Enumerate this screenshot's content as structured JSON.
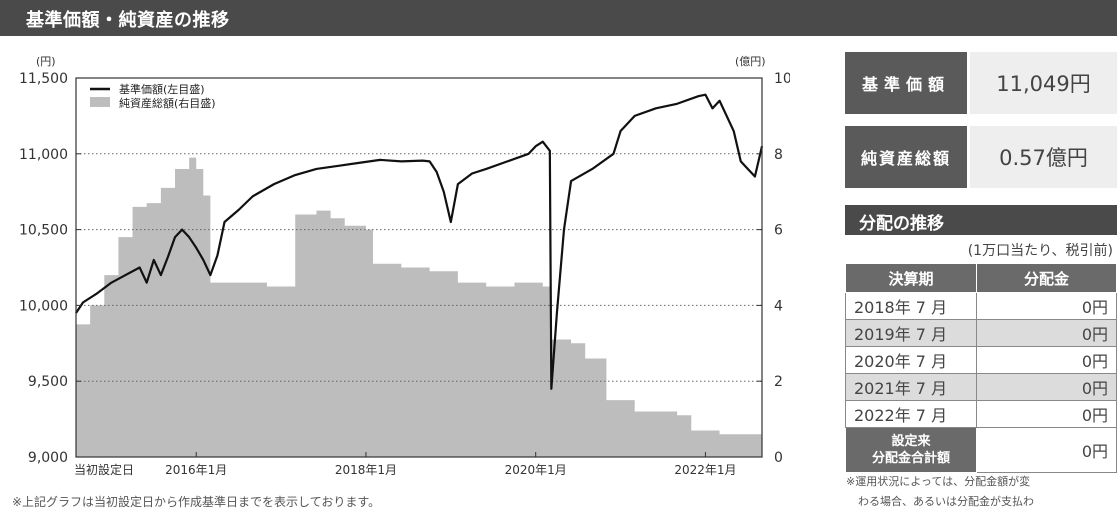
{
  "header": {
    "title": "基準価額・純資産の推移"
  },
  "chart_data": {
    "type": "line+area",
    "left_axis": {
      "unit": "(円)",
      "ticks": [
        "9,000",
        "9,500",
        "10,000",
        "10,500",
        "11,000",
        "11,500"
      ],
      "ylim": [
        9000,
        11500
      ]
    },
    "right_axis": {
      "unit": "(億円)",
      "ticks": [
        "0",
        "2",
        "4",
        "6",
        "8",
        "10"
      ],
      "ylim": [
        0,
        10
      ]
    },
    "x_ticks": [
      "当初設定日",
      "2016年1月",
      "2018年1月",
      "2020年1月",
      "2022年1月"
    ],
    "x_tick_dates": [
      "2014-08",
      "2016-01",
      "2018-01",
      "2020-01",
      "2022-01"
    ],
    "x_range": [
      "2014-08",
      "2022-09"
    ],
    "grid": true,
    "legend_position": "top-left",
    "series": [
      {
        "name": "基準価額(左目盛)",
        "kind": "line",
        "axis": "left",
        "color": "#111111",
        "points": [
          [
            "2014-08",
            9950
          ],
          [
            "2014-09",
            10020
          ],
          [
            "2014-11",
            10080
          ],
          [
            "2015-01",
            10150
          ],
          [
            "2015-03",
            10200
          ],
          [
            "2015-05",
            10250
          ],
          [
            "2015-06",
            10150
          ],
          [
            "2015-07",
            10300
          ],
          [
            "2015-08",
            10200
          ],
          [
            "2015-09",
            10320
          ],
          [
            "2015-10",
            10450
          ],
          [
            "2015-11",
            10500
          ],
          [
            "2015-12",
            10450
          ],
          [
            "2016-01",
            10380
          ],
          [
            "2016-02",
            10300
          ],
          [
            "2016-03",
            10200
          ],
          [
            "2016-04",
            10330
          ],
          [
            "2016-05",
            10550
          ],
          [
            "2016-07",
            10630
          ],
          [
            "2016-09",
            10720
          ],
          [
            "2016-12",
            10800
          ],
          [
            "2017-03",
            10860
          ],
          [
            "2017-06",
            10900
          ],
          [
            "2017-09",
            10920
          ],
          [
            "2017-12",
            10940
          ],
          [
            "2018-03",
            10960
          ],
          [
            "2018-06",
            10950
          ],
          [
            "2018-09",
            10955
          ],
          [
            "2018-10",
            10950
          ],
          [
            "2018-11",
            10880
          ],
          [
            "2018-12",
            10750
          ],
          [
            "2019-01",
            10550
          ],
          [
            "2019-02",
            10800
          ],
          [
            "2019-04",
            10870
          ],
          [
            "2019-06",
            10900
          ],
          [
            "2019-09",
            10950
          ],
          [
            "2019-12",
            11000
          ],
          [
            "2020-01",
            11050
          ],
          [
            "2020-02",
            11080
          ],
          [
            "2020-03",
            11020
          ],
          [
            "2020-03",
            9450
          ],
          [
            "2020-04",
            9950
          ],
          [
            "2020-05",
            10500
          ],
          [
            "2020-06",
            10820
          ],
          [
            "2020-09",
            10900
          ],
          [
            "2020-12",
            11000
          ],
          [
            "2021-01",
            11150
          ],
          [
            "2021-03",
            11250
          ],
          [
            "2021-06",
            11300
          ],
          [
            "2021-09",
            11330
          ],
          [
            "2021-12",
            11380
          ],
          [
            "2022-01",
            11390
          ],
          [
            "2022-02",
            11300
          ],
          [
            "2022-03",
            11350
          ],
          [
            "2022-05",
            11150
          ],
          [
            "2022-06",
            10950
          ],
          [
            "2022-07",
            10900
          ],
          [
            "2022-08",
            10850
          ],
          [
            "2022-09",
            11050
          ]
        ]
      },
      {
        "name": "純資産総額(右目盛)",
        "kind": "area",
        "axis": "right",
        "color": "#bdbdbd",
        "points": [
          [
            "2014-08",
            3.5
          ],
          [
            "2014-10",
            4.0
          ],
          [
            "2014-12",
            4.8
          ],
          [
            "2015-02",
            5.8
          ],
          [
            "2015-04",
            6.6
          ],
          [
            "2015-06",
            6.7
          ],
          [
            "2015-08",
            7.1
          ],
          [
            "2015-10",
            7.6
          ],
          [
            "2015-12",
            7.9
          ],
          [
            "2016-01",
            7.6
          ],
          [
            "2016-02",
            6.9
          ],
          [
            "2016-03",
            4.6
          ],
          [
            "2016-06",
            4.6
          ],
          [
            "2016-09",
            4.6
          ],
          [
            "2016-11",
            4.5
          ],
          [
            "2017-01",
            4.5
          ],
          [
            "2017-03",
            6.4
          ],
          [
            "2017-06",
            6.5
          ],
          [
            "2017-08",
            6.3
          ],
          [
            "2017-10",
            6.1
          ],
          [
            "2018-01",
            6.0
          ],
          [
            "2018-02",
            5.1
          ],
          [
            "2018-06",
            5.0
          ],
          [
            "2018-10",
            4.9
          ],
          [
            "2019-02",
            4.6
          ],
          [
            "2019-06",
            4.5
          ],
          [
            "2019-10",
            4.6
          ],
          [
            "2020-01",
            4.6
          ],
          [
            "2020-02",
            4.5
          ],
          [
            "2020-03",
            3.1
          ],
          [
            "2020-06",
            3.0
          ],
          [
            "2020-08",
            2.6
          ],
          [
            "2020-11",
            1.5
          ],
          [
            "2021-03",
            1.2
          ],
          [
            "2021-06",
            1.2
          ],
          [
            "2021-09",
            1.1
          ],
          [
            "2021-11",
            0.7
          ],
          [
            "2022-03",
            0.6
          ],
          [
            "2022-09",
            0.57
          ]
        ]
      }
    ]
  },
  "summary": {
    "nav_label": "基準価額",
    "nav_value": "11,049円",
    "assets_label": "純資産総額",
    "assets_value": "0.57億円"
  },
  "distribution": {
    "title": "分配の推移",
    "note": "(1万口当たり、税引前)",
    "col_period": "決算期",
    "col_amount": "分配金",
    "rows": [
      {
        "period": "2018年 7 月",
        "amount": "0円"
      },
      {
        "period": "2019年 7 月",
        "amount": "0円"
      },
      {
        "period": "2020年 7 月",
        "amount": "0円"
      },
      {
        "period": "2021年 7 月",
        "amount": "0円"
      },
      {
        "period": "2022年 7 月",
        "amount": "0円"
      }
    ],
    "total_label_1": "設定来",
    "total_label_2": "分配金合計額",
    "total_amount": "0円"
  },
  "footnotes": {
    "left": "※上記グラフは当初設定日から作成基準日までを表示しております。",
    "right_1": "※運用状況によっては、分配金額が変",
    "right_2": "わる場合、あるいは分配金が支払わ"
  }
}
